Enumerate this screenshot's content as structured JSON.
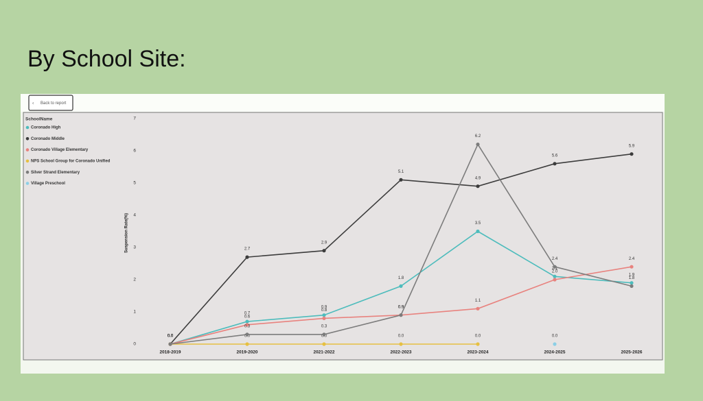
{
  "header": {
    "title": "By School Site:"
  },
  "report": {
    "back_button": "Back to report"
  },
  "chart_data": {
    "type": "line",
    "y_label": "Suspension Rate(%)",
    "legend_title": "SchoolName",
    "legend": "top-left",
    "grid": false,
    "categories": [
      "2018-2019",
      "2019-2020",
      "2021-2022",
      "2022-2023",
      "2023-2024",
      "2024-2025",
      "2025-2026"
    ],
    "ylim": [
      0,
      7
    ],
    "yticks": [
      0,
      1,
      2,
      3,
      4,
      5,
      6,
      7
    ],
    "series": [
      {
        "name": "Coronado High",
        "color": "#4dbcbc",
        "values": [
          0.0,
          0.7,
          0.9,
          1.8,
          3.5,
          2.1,
          1.9
        ],
        "value_labels": [
          "0.0",
          "0.7",
          "0.9",
          "1.8",
          "3.5",
          "2.1",
          "1.9"
        ]
      },
      {
        "name": "Coronado Middle",
        "color": "#3c3c3c",
        "values": [
          0.0,
          2.7,
          2.9,
          5.1,
          4.9,
          5.6,
          5.9
        ],
        "value_labels": [
          "0.0",
          "2.7",
          "2.9",
          "5.1",
          "4.9",
          "5.6",
          "5.9"
        ]
      },
      {
        "name": "Coronado Village Elementary",
        "color": "#e8827e",
        "values": [
          0.0,
          0.6,
          0.8,
          0.9,
          1.1,
          2.0,
          2.4
        ],
        "value_labels": [
          "0.0",
          "0.6",
          "0.8",
          "0.9",
          "1.1",
          "2.0",
          "2.4"
        ]
      },
      {
        "name": "NPS School Group for Coronado Unified",
        "color": "#e6c042",
        "values": [
          0.0,
          0.0,
          0.0,
          0.0,
          0.0,
          null,
          null
        ],
        "value_labels": [
          "0.0",
          "0.0",
          "0.0",
          "0.0",
          "0.0",
          null,
          null
        ]
      },
      {
        "name": "Silver Strand Elementary",
        "color": "#7c7c7c",
        "values": [
          0.0,
          0.3,
          0.3,
          0.9,
          6.2,
          2.4,
          1.8
        ],
        "value_labels": [
          "0.0",
          "0.3",
          "0.3",
          "0.9",
          "6.2",
          "2.4",
          "1.8"
        ]
      },
      {
        "name": "Village Preschool",
        "color": "#8ccfe6",
        "values": [
          null,
          null,
          null,
          null,
          null,
          0.0,
          null
        ],
        "value_labels": [
          null,
          null,
          null,
          null,
          null,
          "0.0",
          null
        ]
      }
    ]
  }
}
